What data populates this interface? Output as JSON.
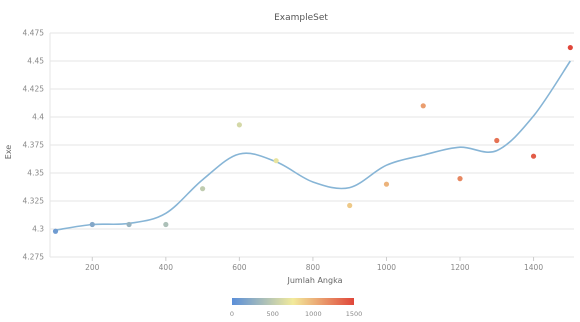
{
  "chart_data": {
    "type": "scatter",
    "title": "ExampleSet",
    "xlabel": "Jumlah Angka",
    "ylabel": "Exe",
    "xlim": [
      85,
      1510
    ],
    "ylim": [
      4.275,
      4.475
    ],
    "x_ticks": [
      {
        "value": 200,
        "label": "200"
      },
      {
        "value": 400,
        "label": "400"
      },
      {
        "value": 600,
        "label": "600"
      },
      {
        "value": 800,
        "label": "800"
      },
      {
        "value": 1000,
        "label": "1000"
      },
      {
        "value": 1200,
        "label": "1200"
      },
      {
        "value": 1400,
        "label": "1400"
      }
    ],
    "y_ticks": [
      {
        "value": 4.275,
        "label": "4.275"
      },
      {
        "value": 4.3,
        "label": "4.3"
      },
      {
        "value": 4.325,
        "label": "4.325"
      },
      {
        "value": 4.35,
        "label": "4.35"
      },
      {
        "value": 4.375,
        "label": "4.375"
      },
      {
        "value": 4.4,
        "label": "4.4"
      },
      {
        "value": 4.425,
        "label": "4.425"
      },
      {
        "value": 4.45,
        "label": "4.45"
      },
      {
        "value": 4.475,
        "label": "4.475"
      }
    ],
    "grid": true,
    "points": [
      {
        "x": 100,
        "y": 4.298
      },
      {
        "x": 200,
        "y": 4.304
      },
      {
        "x": 300,
        "y": 4.304
      },
      {
        "x": 400,
        "y": 4.304
      },
      {
        "x": 500,
        "y": 4.336
      },
      {
        "x": 600,
        "y": 4.393
      },
      {
        "x": 700,
        "y": 4.361
      },
      {
        "x": 900,
        "y": 4.321
      },
      {
        "x": 1000,
        "y": 4.34
      },
      {
        "x": 1100,
        "y": 4.41
      },
      {
        "x": 1200,
        "y": 4.345
      },
      {
        "x": 1300,
        "y": 4.379
      },
      {
        "x": 1400,
        "y": 4.365
      },
      {
        "x": 1500,
        "y": 4.462
      }
    ],
    "smooth_curve": {
      "x": [
        100,
        200,
        300,
        400,
        500,
        600,
        700,
        800,
        900,
        1000,
        1100,
        1200,
        1300,
        1400,
        1500
      ],
      "y": [
        4.299,
        4.304,
        4.305,
        4.314,
        4.344,
        4.367,
        4.36,
        4.342,
        4.337,
        4.357,
        4.366,
        4.373,
        4.37,
        4.401,
        4.45
      ],
      "color": "#87b5d6"
    },
    "colorbar": {
      "min": 0,
      "max": 1500,
      "stops": [
        "#5b8fd9",
        "#f2ea9b",
        "#e0463a"
      ],
      "ticks": [
        {
          "value": 0,
          "label": "0"
        },
        {
          "value": 500,
          "label": "500"
        },
        {
          "value": 1000,
          "label": "1000"
        },
        {
          "value": 1500,
          "label": "1500"
        }
      ]
    }
  }
}
